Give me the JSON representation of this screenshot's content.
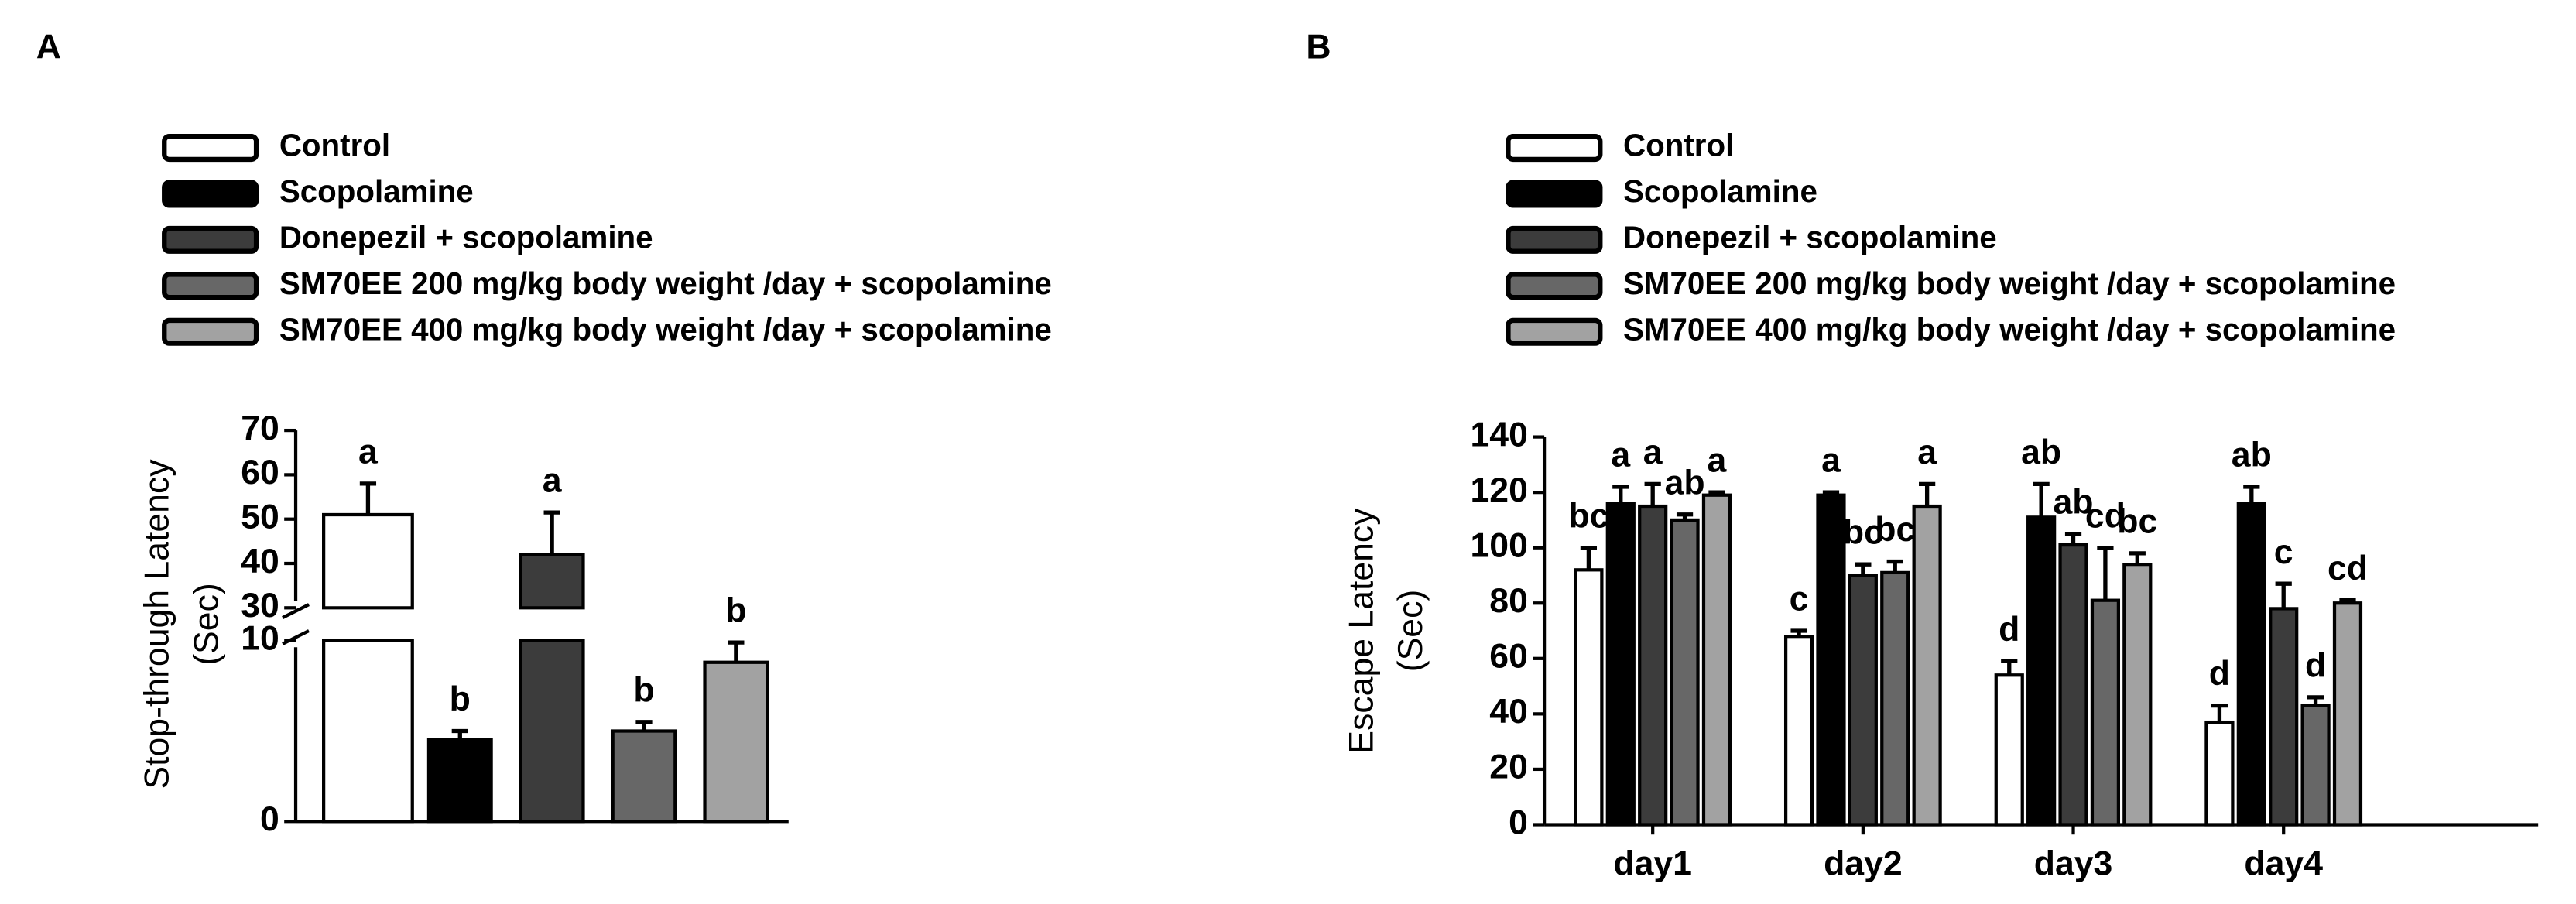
{
  "chart_data": [
    {
      "type": "broken-bar",
      "panel": "A",
      "ylabel": [
        "Stop-through  Latency",
        "(Sec)"
      ],
      "ylim": [
        0,
        70
      ],
      "ybreak": [
        10,
        30
      ],
      "yticks": [
        0,
        10,
        30,
        40,
        50,
        60,
        70
      ],
      "series": [
        {
          "name": "Control",
          "color": "#ffffff",
          "values": [
            51
          ],
          "errors": [
            7
          ],
          "letters": [
            "a"
          ]
        },
        {
          "name": "Scopolamine",
          "color": "#000000",
          "values": [
            4.5
          ],
          "errors": [
            0.5
          ],
          "letters": [
            "b"
          ]
        },
        {
          "name": "Donepezil +  scopolamine",
          "color": "#3c3c3c",
          "values": [
            42
          ],
          "errors": [
            9.5
          ],
          "letters": [
            "a"
          ]
        },
        {
          "name": "SM70EE  200 mg/kg body weight /day + scopolamine",
          "color": "#676767",
          "values": [
            5
          ],
          "errors": [
            0.5
          ],
          "letters": [
            "b"
          ]
        },
        {
          "name": "SM70EE  400 mg/kg body weight /day + scopolamine",
          "color": "#a2a2a2",
          "values": [
            8.8
          ],
          "errors": [
            1.1
          ],
          "letters": [
            "b"
          ]
        }
      ]
    },
    {
      "type": "grouped-bar",
      "panel": "B",
      "ylabel": [
        "Escape Latency",
        "(Sec)"
      ],
      "categories": [
        "day1",
        "day2",
        "day3",
        "day4"
      ],
      "ylim": [
        0,
        140
      ],
      "yticks": [
        0,
        20,
        40,
        60,
        80,
        100,
        120,
        140
      ],
      "series": [
        {
          "name": "Control",
          "color": "#ffffff",
          "values": [
            92,
            68,
            54,
            37
          ],
          "errors": [
            8,
            2,
            5,
            6
          ],
          "letters": [
            "bc",
            "c",
            "d",
            "d"
          ]
        },
        {
          "name": "Scopolamine",
          "color": "#000000",
          "values": [
            116,
            119,
            111,
            116
          ],
          "errors": [
            6,
            1,
            12,
            6
          ],
          "letters": [
            "a",
            "a",
            "ab",
            "ab"
          ]
        },
        {
          "name": "Donepezil +  scopolamine",
          "color": "#3c3c3c",
          "values": [
            115,
            90,
            101,
            78
          ],
          "errors": [
            8,
            4,
            4,
            9
          ],
          "letters": [
            "a",
            "bc",
            "ab",
            "c"
          ]
        },
        {
          "name": "SM70EE  200 mg/kg body weight /day + scopolamine",
          "color": "#676767",
          "values": [
            110,
            91,
            81,
            43
          ],
          "errors": [
            2,
            4,
            19,
            3
          ],
          "letters": [
            "ab",
            "bc",
            "cd",
            "d"
          ]
        },
        {
          "name": "SM70EE  400 mg/kg body weight /day + scopolamine",
          "color": "#a2a2a2",
          "values": [
            119,
            115,
            94,
            80
          ],
          "errors": [
            1,
            8,
            4,
            1
          ],
          "letters": [
            "a",
            "a",
            "bc",
            "cd"
          ]
        }
      ]
    }
  ]
}
